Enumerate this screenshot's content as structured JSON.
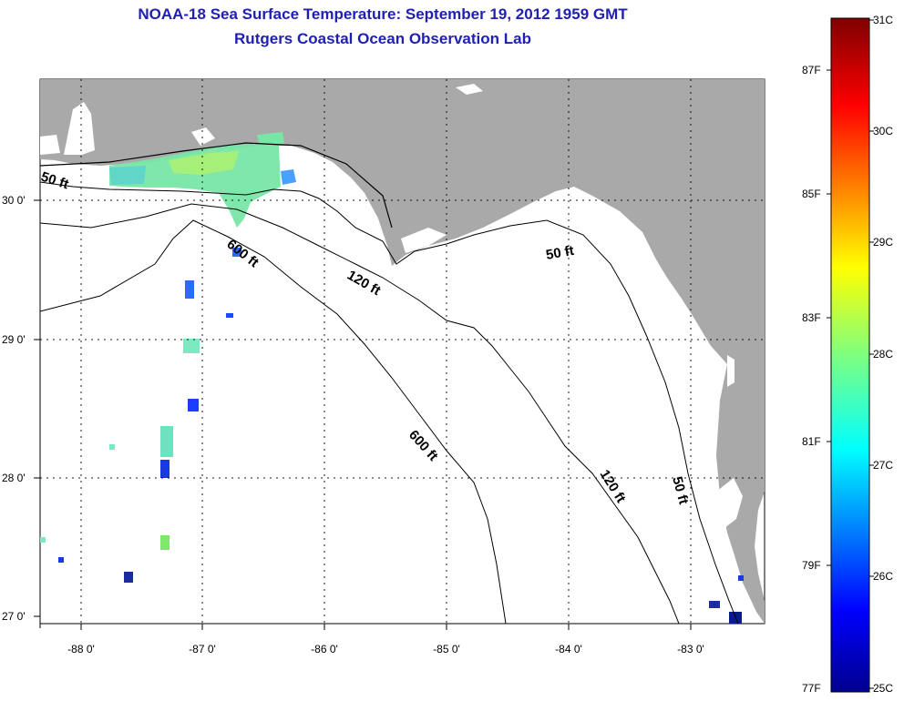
{
  "title": "NOAA-18 Sea Surface Temperature:  September 19, 2012 1959 GMT",
  "subtitle": "Rutgers Coastal Ocean Observation Lab",
  "latitude_labels": [
    "30 0'",
    "29 0'",
    "28 0'",
    "27 0'"
  ],
  "longitude_labels": [
    "-88 0'",
    "-87 0'",
    "-86 0'",
    "-85 0'",
    "-84 0'",
    "-83 0'"
  ],
  "contour_labels": {
    "nw_50ft": "50 ft",
    "ne_50ft": "50 ft",
    "e_50ft": "50 ft",
    "n_600ft": "600 ft",
    "s_600ft": "600 ft",
    "n_120ft": "120 ft",
    "s_120ft": "120 ft"
  },
  "colorbar": {
    "fahrenheit_labels": [
      "87F",
      "85F",
      "83F",
      "81F",
      "79F",
      "77F"
    ],
    "celsius_labels": [
      "31C",
      "30C",
      "29C",
      "28C",
      "27C",
      "26C",
      "25C"
    ],
    "min_c": 25,
    "max_c": 31
  },
  "colors": {
    "title": "#1f1fb4",
    "land": "#a9a9a9",
    "ocean": "#ffffff"
  }
}
